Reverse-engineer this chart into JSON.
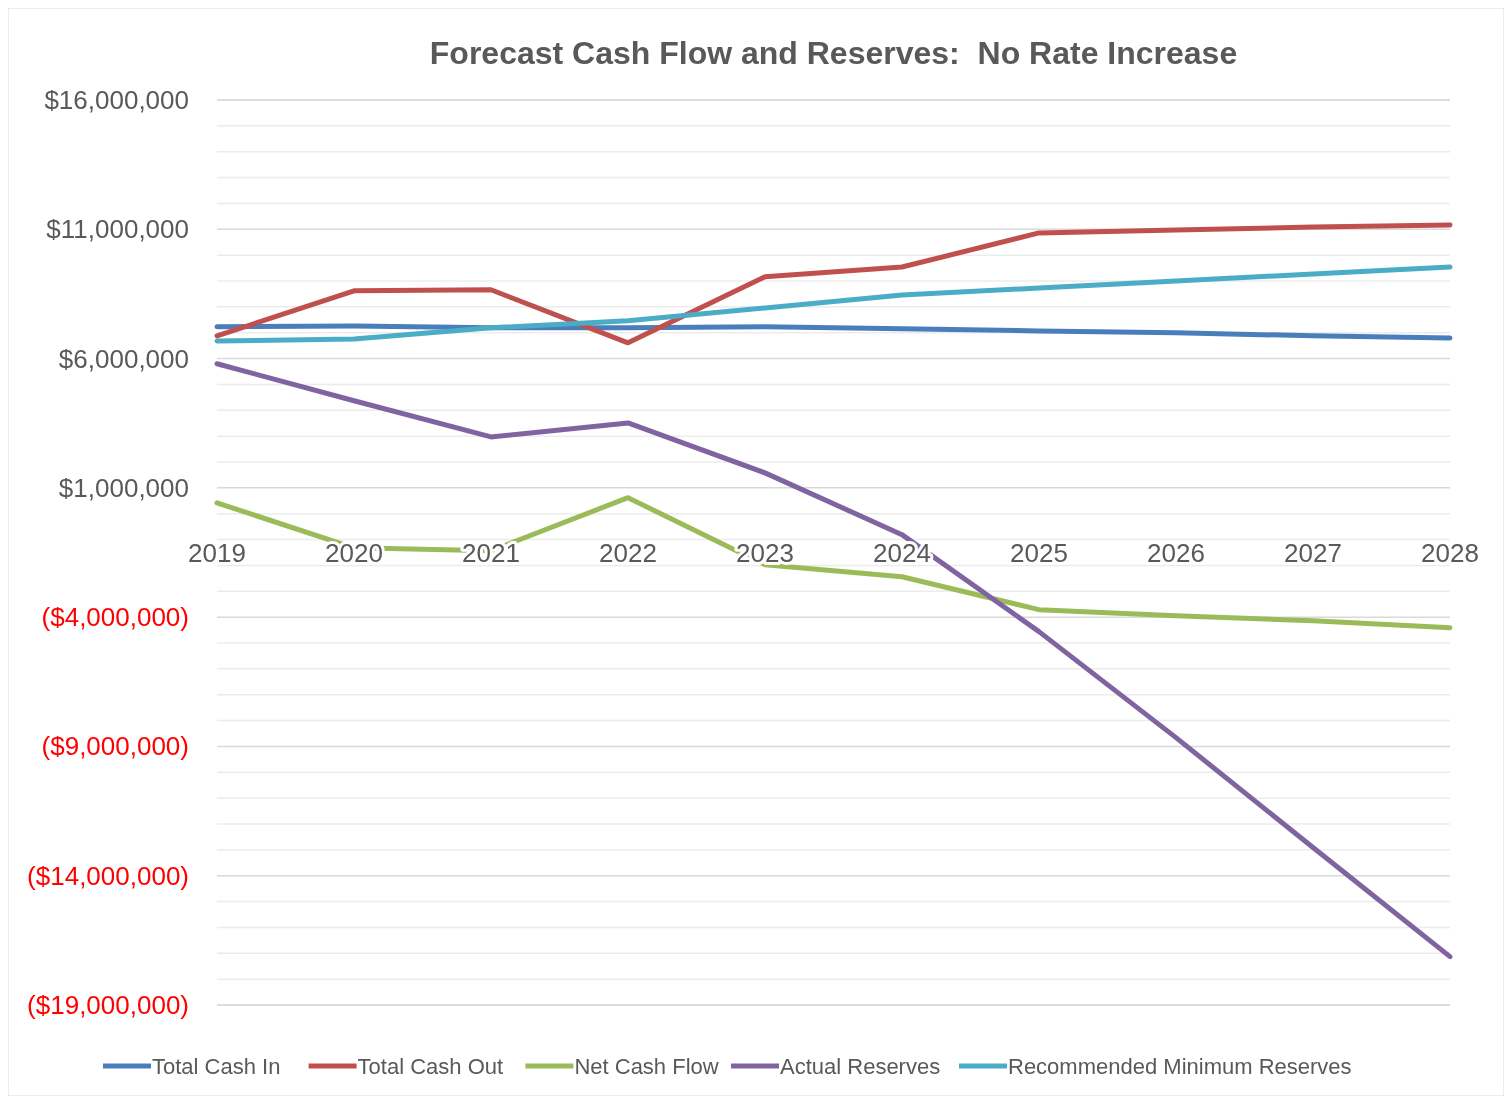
{
  "chart_data": {
    "type": "line",
    "title": "Forecast Cash Flow and Reserves:  No Rate Increase",
    "categories": [
      "2019",
      "2020",
      "2021",
      "2022",
      "2023",
      "2024",
      "2025",
      "2026",
      "2027",
      "2028"
    ],
    "series": [
      {
        "name": "Total Cash In",
        "color": "#4a7ebb",
        "values": [
          7230000,
          7260000,
          7190000,
          7190000,
          7230000,
          7150000,
          7070000,
          7000000,
          6880000,
          6800000
        ]
      },
      {
        "name": "Total Cash Out",
        "color": "#c0504d",
        "values": [
          6880000,
          8620000,
          8660000,
          6610000,
          9160000,
          9540000,
          10860000,
          10970000,
          11090000,
          11170000
        ]
      },
      {
        "name": "Net Cash Flow",
        "color": "#9bbb59",
        "values": [
          420000,
          -1320000,
          -1430000,
          620000,
          -1970000,
          -2440000,
          -3710000,
          -3950000,
          -4140000,
          -4410000
        ]
      },
      {
        "name": "Actual Reserves",
        "color": "#8064a2",
        "values": [
          5800000,
          4370000,
          2970000,
          3510000,
          1580000,
          -810000,
          -4560000,
          -8660000,
          -12910000,
          -17130000
        ]
      },
      {
        "name": "Recommended Minimum Reserves",
        "color": "#4bacc6",
        "values": [
          6680000,
          6760000,
          7190000,
          7460000,
          7960000,
          8460000,
          8730000,
          9000000,
          9270000,
          9540000
        ]
      }
    ],
    "ylim": [
      -19000000,
      16000000
    ],
    "yticks": [
      {
        "value": -19000000,
        "label": "($19,000,000)"
      },
      {
        "value": -18000000,
        "label": null
      },
      {
        "value": -17000000,
        "label": null
      },
      {
        "value": -16000000,
        "label": null
      },
      {
        "value": -15000000,
        "label": null
      },
      {
        "value": -14000000,
        "label": "($14,000,000)"
      },
      {
        "value": -13000000,
        "label": null
      },
      {
        "value": -12000000,
        "label": null
      },
      {
        "value": -11000000,
        "label": null
      },
      {
        "value": -10000000,
        "label": null
      },
      {
        "value": -9000000,
        "label": "($9,000,000)"
      },
      {
        "value": -8000000,
        "label": null
      },
      {
        "value": -7000000,
        "label": null
      },
      {
        "value": -6000000,
        "label": null
      },
      {
        "value": -5000000,
        "label": null
      },
      {
        "value": -4000000,
        "label": "($4,000,000)"
      },
      {
        "value": -3000000,
        "label": null
      },
      {
        "value": -2000000,
        "label": null
      },
      {
        "value": -1000000,
        "label": null
      },
      {
        "value": 0,
        "label": null
      },
      {
        "value": 1000000,
        "label": "$1,000,000"
      },
      {
        "value": 2000000,
        "label": null
      },
      {
        "value": 3000000,
        "label": null
      },
      {
        "value": 4000000,
        "label": null
      },
      {
        "value": 5000000,
        "label": null
      },
      {
        "value": 6000000,
        "label": "$6,000,000"
      },
      {
        "value": 7000000,
        "label": null
      },
      {
        "value": 8000000,
        "label": null
      },
      {
        "value": 9000000,
        "label": null
      },
      {
        "value": 10000000,
        "label": null
      },
      {
        "value": 11000000,
        "label": "$11,000,000"
      },
      {
        "value": 12000000,
        "label": null
      },
      {
        "value": 13000000,
        "label": null
      },
      {
        "value": 14000000,
        "label": null
      },
      {
        "value": 15000000,
        "label": null
      },
      {
        "value": 16000000,
        "label": "$16,000,000"
      }
    ],
    "grid": "y",
    "legend": "bottom",
    "marker": "none",
    "line_style": "solid"
  }
}
